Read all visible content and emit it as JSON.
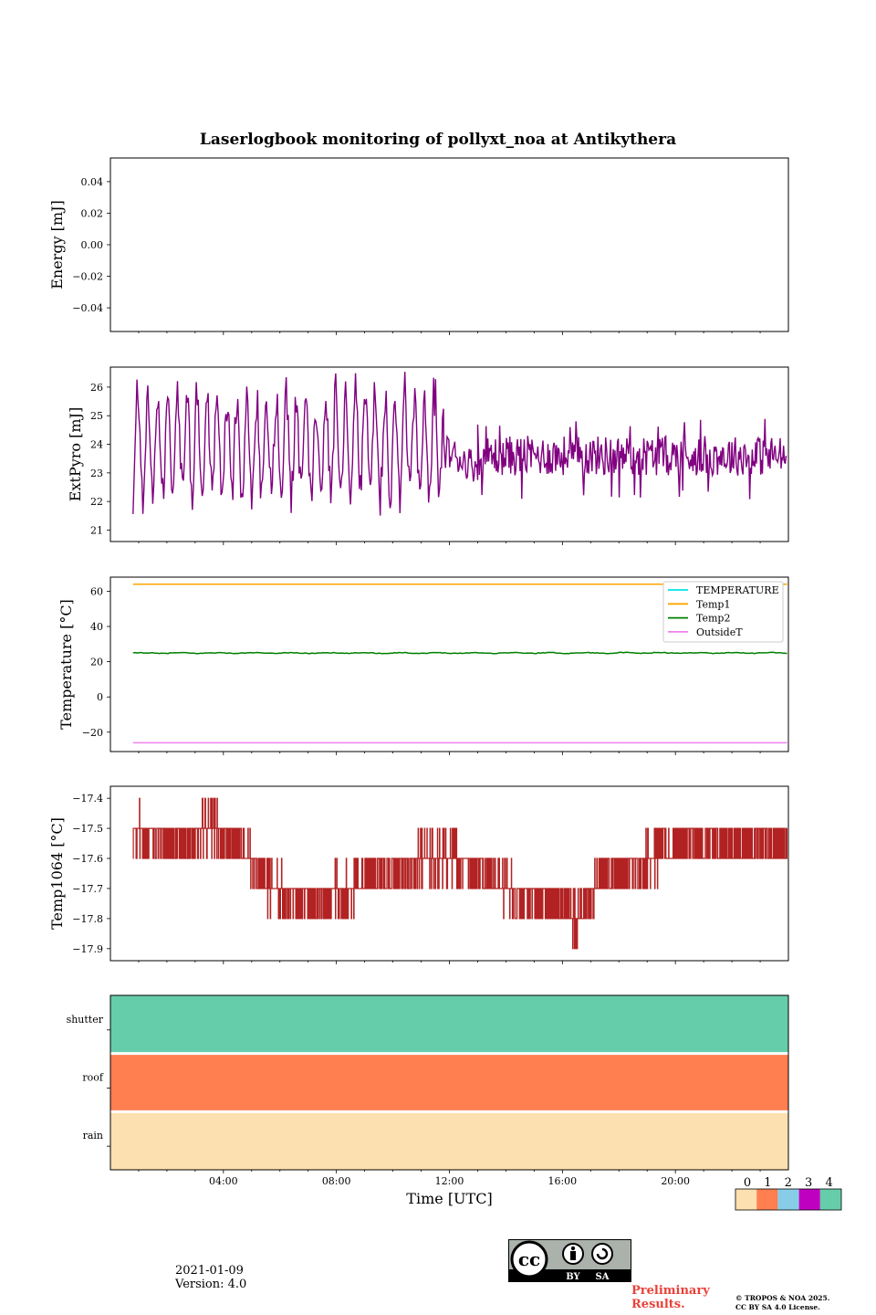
{
  "figure": {
    "title": "Laserlogbook monitoring of pollyxt_noa at Antikythera",
    "date": "2021-01-09",
    "version": "Version: 4.0",
    "preliminary": "Preliminary\nResults.",
    "copyright_line1": "© TROPOS & NOA 2025.",
    "copyright_line2": "CC BY SA 4.0 License.",
    "license_badge": {
      "by": "BY",
      "sa": "SA",
      "cc": "cc"
    }
  },
  "chart_data": [
    {
      "type": "line",
      "ylabel": "Energy [mJ]",
      "ylim": [
        -0.055,
        0.055
      ],
      "yticks": [
        0.04,
        0.02,
        0.0,
        -0.02,
        -0.04
      ],
      "ytick_labels": [
        "0.04",
        "0.02",
        "0.00",
        "−0.02",
        "−0.04"
      ],
      "series": []
    },
    {
      "type": "line",
      "ylabel": "ExtPyro [mJ]",
      "ylim": [
        20.6,
        26.7
      ],
      "yticks": [
        26,
        25,
        24,
        23,
        22,
        21
      ],
      "ytick_labels": [
        "26",
        "25",
        "24",
        "23",
        "22",
        "21"
      ],
      "series": [
        {
          "color": "#800080",
          "x_range_hours": [
            0.8,
            23.95
          ],
          "segments": [
            {
              "from": 0.8,
              "to": 11.8,
              "mode": "oscillate",
              "low": [
                21.6,
                22.8
              ],
              "high": [
                25.0,
                26.5
              ],
              "period": 0.35
            },
            {
              "from": 11.8,
              "to": 13.0,
              "mode": "transition",
              "start": 23.8,
              "end": 23.2
            },
            {
              "from": 13.0,
              "to": 23.95,
              "mode": "noise",
              "mean": 23.6,
              "spread": 0.7,
              "spikes": [
                22.2,
                24.8
              ]
            }
          ]
        }
      ]
    },
    {
      "type": "line",
      "ylabel": "Temperature [°C]",
      "ylim": [
        -31,
        68
      ],
      "yticks": [
        60,
        40,
        20,
        0,
        -20
      ],
      "ytick_labels": [
        "60",
        "40",
        "20",
        "0",
        "−20"
      ],
      "legend": "top-right",
      "series": [
        {
          "name": "TEMPERATURE",
          "color": "#00e5e5",
          "values": []
        },
        {
          "name": "Temp1",
          "color": "#ffa500",
          "x": [
            0.8,
            23.95
          ],
          "y": [
            64,
            64
          ]
        },
        {
          "name": "Temp2",
          "color": "#008000",
          "x": [
            0.8,
            23.95
          ],
          "y": [
            24.9,
            25.0
          ],
          "jitter": 0.4
        },
        {
          "name": "OutsideT",
          "color": "#ee82ee",
          "x": [
            0.8,
            23.95
          ],
          "y": [
            -26,
            -26
          ]
        }
      ]
    },
    {
      "type": "line",
      "ylabel": "Temp1064 [°C]",
      "ylim": [
        -17.94,
        -17.36
      ],
      "yticks": [
        -17.4,
        -17.5,
        -17.6,
        -17.7,
        -17.8,
        -17.9
      ],
      "ytick_labels": [
        "−17.4",
        "−17.5",
        "−17.6",
        "−17.7",
        "−17.8",
        "−17.9"
      ],
      "series": [
        {
          "color": "#b22222",
          "step": 0.1,
          "x": [
            0.8,
            2.0,
            3.5,
            4.6,
            5.6,
            7.2,
            9.5,
            11.5,
            12.5,
            14.0,
            15.5,
            16.5,
            17.5,
            19.0,
            20.5,
            23.95
          ],
          "y": [
            -17.5,
            -17.55,
            -17.5,
            -17.55,
            -17.7,
            -17.75,
            -17.65,
            -17.6,
            -17.6,
            -17.7,
            -17.75,
            -17.8,
            -17.65,
            -17.6,
            -17.55,
            -17.55
          ]
        }
      ]
    },
    {
      "type": "heatmap",
      "categories": [
        "rain",
        "roof",
        "shutter"
      ],
      "status_values": [
        0,
        1,
        4
      ],
      "colors": {
        "0": "#fde0b0",
        "1": "#ff7f50",
        "2": "#87cde8",
        "3": "#c000c0",
        "4": "#66cdaa"
      },
      "colorbar_ticks": [
        "0",
        "1",
        "2",
        "3",
        "4"
      ],
      "xlabel": "Time [UTC]",
      "xticks": [
        "04:00",
        "08:00",
        "12:00",
        "16:00",
        "20:00"
      ]
    }
  ]
}
